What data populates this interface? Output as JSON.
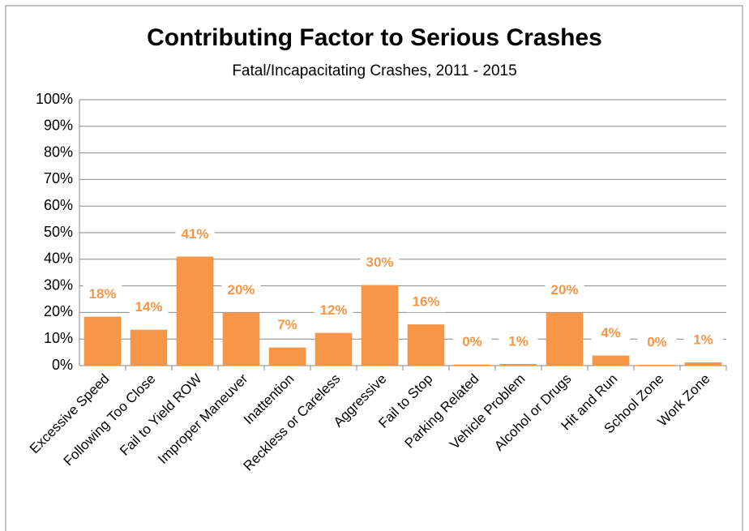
{
  "chart_data": {
    "type": "bar",
    "title": "Contributing Factor to Serious Crashes",
    "subtitle": "Fatal/Incapacitating  Crashes, 2011 - 2015",
    "categories": [
      "Excessive Speed",
      "Following Too Close",
      "Fail to Yield ROW",
      "Improper Maneuver",
      "Inattention",
      "Reckless or Careless",
      "Aggressive",
      "Fail to Stop",
      "Parking Related",
      "Vehicle Problem",
      "Alcohol or Drugs",
      "Hit and Run",
      "School Zone",
      "Work Zone"
    ],
    "values": [
      18.4,
      13.5,
      41,
      20,
      6.8,
      12.3,
      30.3,
      15.5,
      0.4,
      0.6,
      20,
      3.8,
      0.3,
      1.2
    ],
    "value_labels": [
      "18%",
      "14%",
      "41%",
      "20%",
      "7%",
      "12%",
      "30%",
      "16%",
      "0%",
      "1%",
      "20%",
      "4%",
      "0%",
      "1%"
    ],
    "color": "#f79646",
    "ylim": [
      0,
      100
    ],
    "yticks": [
      {
        "value": 0,
        "label": "0%"
      },
      {
        "value": 10,
        "label": "10%"
      },
      {
        "value": 20,
        "label": "20%"
      },
      {
        "value": 30,
        "label": "30%"
      },
      {
        "value": 40,
        "label": "40%"
      },
      {
        "value": 50,
        "label": "50%"
      },
      {
        "value": 60,
        "label": "60%"
      },
      {
        "value": 70,
        "label": "70%"
      },
      {
        "value": 80,
        "label": "80%"
      },
      {
        "value": 90,
        "label": "90%"
      },
      {
        "value": 100,
        "label": "100%"
      }
    ],
    "grid": true
  }
}
